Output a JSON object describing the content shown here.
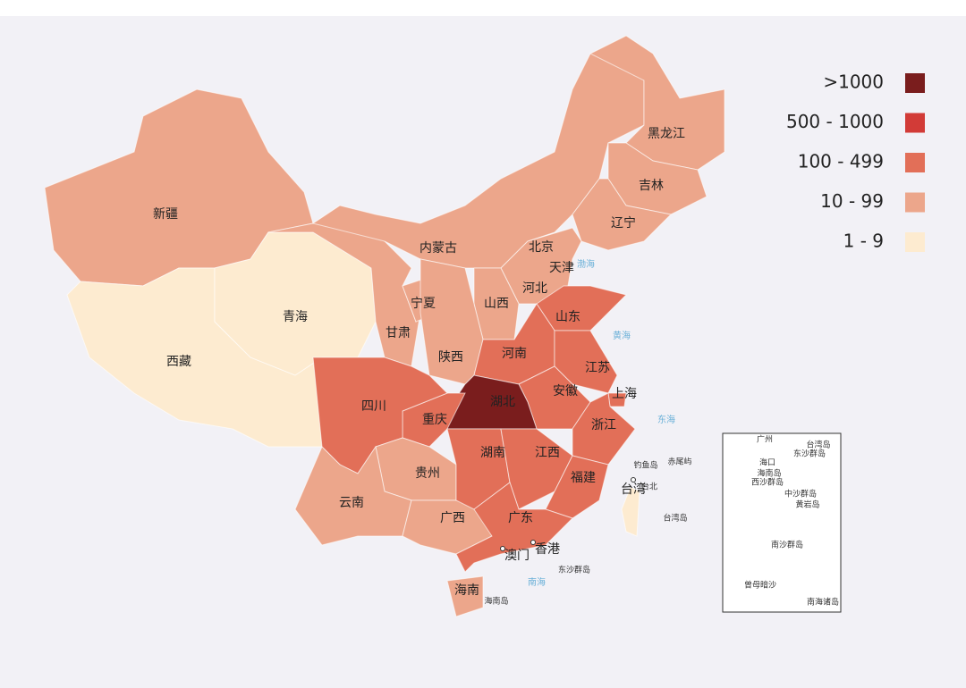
{
  "legend": {
    "items": [
      {
        "label": ">1000",
        "color": "#7a1d1d"
      },
      {
        "label": "500 - 1000",
        "color": "#d23b37"
      },
      {
        "label": "100 - 499",
        "color": "#e26f58"
      },
      {
        "label": "10 - 99",
        "color": "#eca68b"
      },
      {
        "label": "1 - 9",
        "color": "#fdebd0"
      }
    ]
  },
  "provinces": [
    {
      "name": "新疆",
      "level": 3
    },
    {
      "name": "西藏",
      "level": 4
    },
    {
      "name": "青海",
      "level": 4
    },
    {
      "name": "甘肃",
      "level": 3
    },
    {
      "name": "内蒙古",
      "level": 3
    },
    {
      "name": "黑龙江",
      "level": 3
    },
    {
      "name": "吉林",
      "level": 3
    },
    {
      "name": "辽宁",
      "level": 3
    },
    {
      "name": "北京",
      "level": 2
    },
    {
      "name": "天津",
      "level": 3
    },
    {
      "name": "河北",
      "level": 3
    },
    {
      "name": "山西",
      "level": 3
    },
    {
      "name": "宁夏",
      "level": 3
    },
    {
      "name": "陕西",
      "level": 3
    },
    {
      "name": "山东",
      "level": 2
    },
    {
      "name": "河南",
      "level": 2
    },
    {
      "name": "江苏",
      "level": 2
    },
    {
      "name": "安徽",
      "level": 2
    },
    {
      "name": "上海",
      "level": 2
    },
    {
      "name": "浙江",
      "level": 2
    },
    {
      "name": "湖北",
      "level": 0
    },
    {
      "name": "重庆",
      "level": 2
    },
    {
      "name": "四川",
      "level": 2
    },
    {
      "name": "贵州",
      "level": 3
    },
    {
      "name": "云南",
      "level": 3
    },
    {
      "name": "广西",
      "level": 3
    },
    {
      "name": "湖南",
      "level": 2
    },
    {
      "name": "江西",
      "level": 2
    },
    {
      "name": "福建",
      "level": 2
    },
    {
      "name": "广东",
      "level": 2
    },
    {
      "name": "海南",
      "level": 3
    },
    {
      "name": "台湾",
      "level": 4
    }
  ],
  "places": [
    "香港",
    "澳门",
    "台北",
    "钓鱼岛",
    "赤尾屿",
    "台湾岛",
    "东沙群岛",
    "海南岛"
  ],
  "seas": [
    "渤海",
    "黄海",
    "东海",
    "南海"
  ],
  "inset": {
    "labels": [
      "广州",
      "东沙群岛",
      "台湾岛",
      "海口",
      "海南岛",
      "西沙群岛",
      "中沙群岛",
      "黄岩岛",
      "南沙群岛",
      "曾母暗沙",
      "南海诸岛"
    ]
  }
}
